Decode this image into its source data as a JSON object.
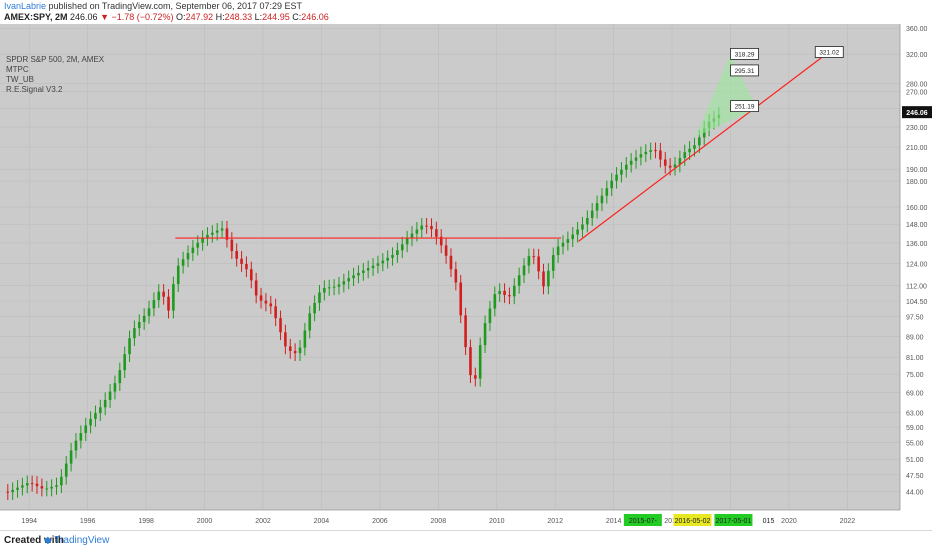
{
  "header": {
    "author": "IvanLabrie",
    "published_text": "published on TradingView.com, September 06, 2017 07:29 EST",
    "symbol": "AMEX:SPY, 2M",
    "last": "246.06",
    "change": "▼ −1.78 (−0.72%)",
    "open_label": "O:",
    "open": "247.92",
    "high_label": "H:",
    "high": "248.33",
    "low_label": "L:",
    "low": "244.95",
    "close_label": "C:",
    "close": "246.06"
  },
  "legend": {
    "title": "SPDR S&P 500, 2M, AMEX",
    "indicators": [
      "MTPC",
      "TW_UB",
      "R.E.Signal V3.2"
    ]
  },
  "footer": {
    "created_with": "Created with",
    "brand": "TradingView"
  },
  "colors": {
    "up": "#1e9b1e",
    "down": "#d41e1e",
    "bg": "#cbcbcb",
    "grid": "#bdbdbd",
    "resistance": "#ff2020",
    "date_green": "#22cc22",
    "date_yellow": "#e8e822"
  },
  "chart_data": {
    "type": "candlestick",
    "instrument": "SPY",
    "timeframe": "2M",
    "x_axis": {
      "range": [
        1993.0,
        2023.8
      ],
      "tick_labels": [
        "1994",
        "1996",
        "1998",
        "2000",
        "2002",
        "2004",
        "2006",
        "2008",
        "2010",
        "2012",
        "2014",
        "2016",
        "2018",
        "2020",
        "2022"
      ]
    },
    "date_markers": [
      {
        "label": "2015-07-",
        "color": "green"
      },
      {
        "label": "2016-05-02",
        "color": "yellow"
      },
      {
        "label": "2017-05-01",
        "color": "green"
      },
      {
        "label": "015",
        "color": "none"
      }
    ],
    "y_axis": {
      "scale": "log",
      "range": [
        40.5,
        367
      ],
      "tick_labels": [
        "360.00",
        "320.00",
        "280.00",
        "270.00",
        "250.00",
        "230.00",
        "210.00",
        "190.00",
        "180.00",
        "160.00",
        "148.00",
        "136.00",
        "124.00",
        "112.00",
        "104.50",
        "97.50",
        "89.00",
        "81.00",
        "75.00",
        "69.00",
        "63.00",
        "59.00",
        "55.00",
        "51.00",
        "47.50",
        "44.00"
      ],
      "tick_values": [
        360,
        320,
        280,
        270,
        250,
        230,
        210,
        190,
        180,
        160,
        148,
        136,
        124,
        112,
        104.5,
        97.5,
        89,
        81,
        75,
        69,
        63,
        59,
        55,
        51,
        47.5,
        44
      ]
    },
    "last_price": 246.06,
    "price_points": [
      [
        1993.1,
        44.0
      ],
      [
        1994.0,
        46.5
      ],
      [
        1994.5,
        45.0
      ],
      [
        1995.0,
        46.0
      ],
      [
        1995.5,
        55.0
      ],
      [
        1996.0,
        61.0
      ],
      [
        1996.5,
        66.0
      ],
      [
        1997.0,
        74.0
      ],
      [
        1997.5,
        92.0
      ],
      [
        1998.0,
        100.0
      ],
      [
        1998.5,
        112.0
      ],
      [
        1998.8,
        100.0
      ],
      [
        1999.0,
        122.0
      ],
      [
        1999.5,
        133.0
      ],
      [
        2000.0,
        142.0
      ],
      [
        2000.6,
        147.0
      ],
      [
        2001.0,
        130.0
      ],
      [
        2001.5,
        121.0
      ],
      [
        2001.8,
        107.0
      ],
      [
        2002.3,
        103.0
      ],
      [
        2002.8,
        85.0
      ],
      [
        2003.2,
        83.0
      ],
      [
        2003.6,
        100.0
      ],
      [
        2004.0,
        112.0
      ],
      [
        2004.5,
        113.0
      ],
      [
        2005.0,
        118.0
      ],
      [
        2005.5,
        122.0
      ],
      [
        2006.0,
        126.0
      ],
      [
        2006.5,
        131.0
      ],
      [
        2007.0,
        142.0
      ],
      [
        2007.5,
        150.0
      ],
      [
        2007.8,
        146.0
      ],
      [
        2008.2,
        133.0
      ],
      [
        2008.6,
        115.0
      ],
      [
        2008.9,
        88.0
      ],
      [
        2009.2,
        70.0
      ],
      [
        2009.5,
        92.0
      ],
      [
        2010.0,
        112.0
      ],
      [
        2010.4,
        107.0
      ],
      [
        2010.8,
        120.0
      ],
      [
        2011.2,
        133.0
      ],
      [
        2011.6,
        113.0
      ],
      [
        2012.0,
        134.0
      ],
      [
        2012.5,
        141.0
      ],
      [
        2013.0,
        151.0
      ],
      [
        2013.5,
        167.0
      ],
      [
        2014.0,
        185.0
      ],
      [
        2014.5,
        198.0
      ],
      [
        2015.0,
        207.0
      ],
      [
        2015.4,
        211.0
      ],
      [
        2015.7,
        196.0
      ],
      [
        2016.0,
        193.0
      ],
      [
        2016.4,
        207.0
      ],
      [
        2016.8,
        215.0
      ],
      [
        2017.2,
        237.0
      ],
      [
        2017.6,
        246.06
      ]
    ],
    "annotations": {
      "price_labels": [
        "318.29",
        "295.31",
        "251.19",
        "321.02"
      ],
      "resistance_level": 139,
      "trendline": {
        "from": [
          2012.8,
          137
        ],
        "to": [
          2021.3,
          321.02
        ]
      }
    }
  }
}
